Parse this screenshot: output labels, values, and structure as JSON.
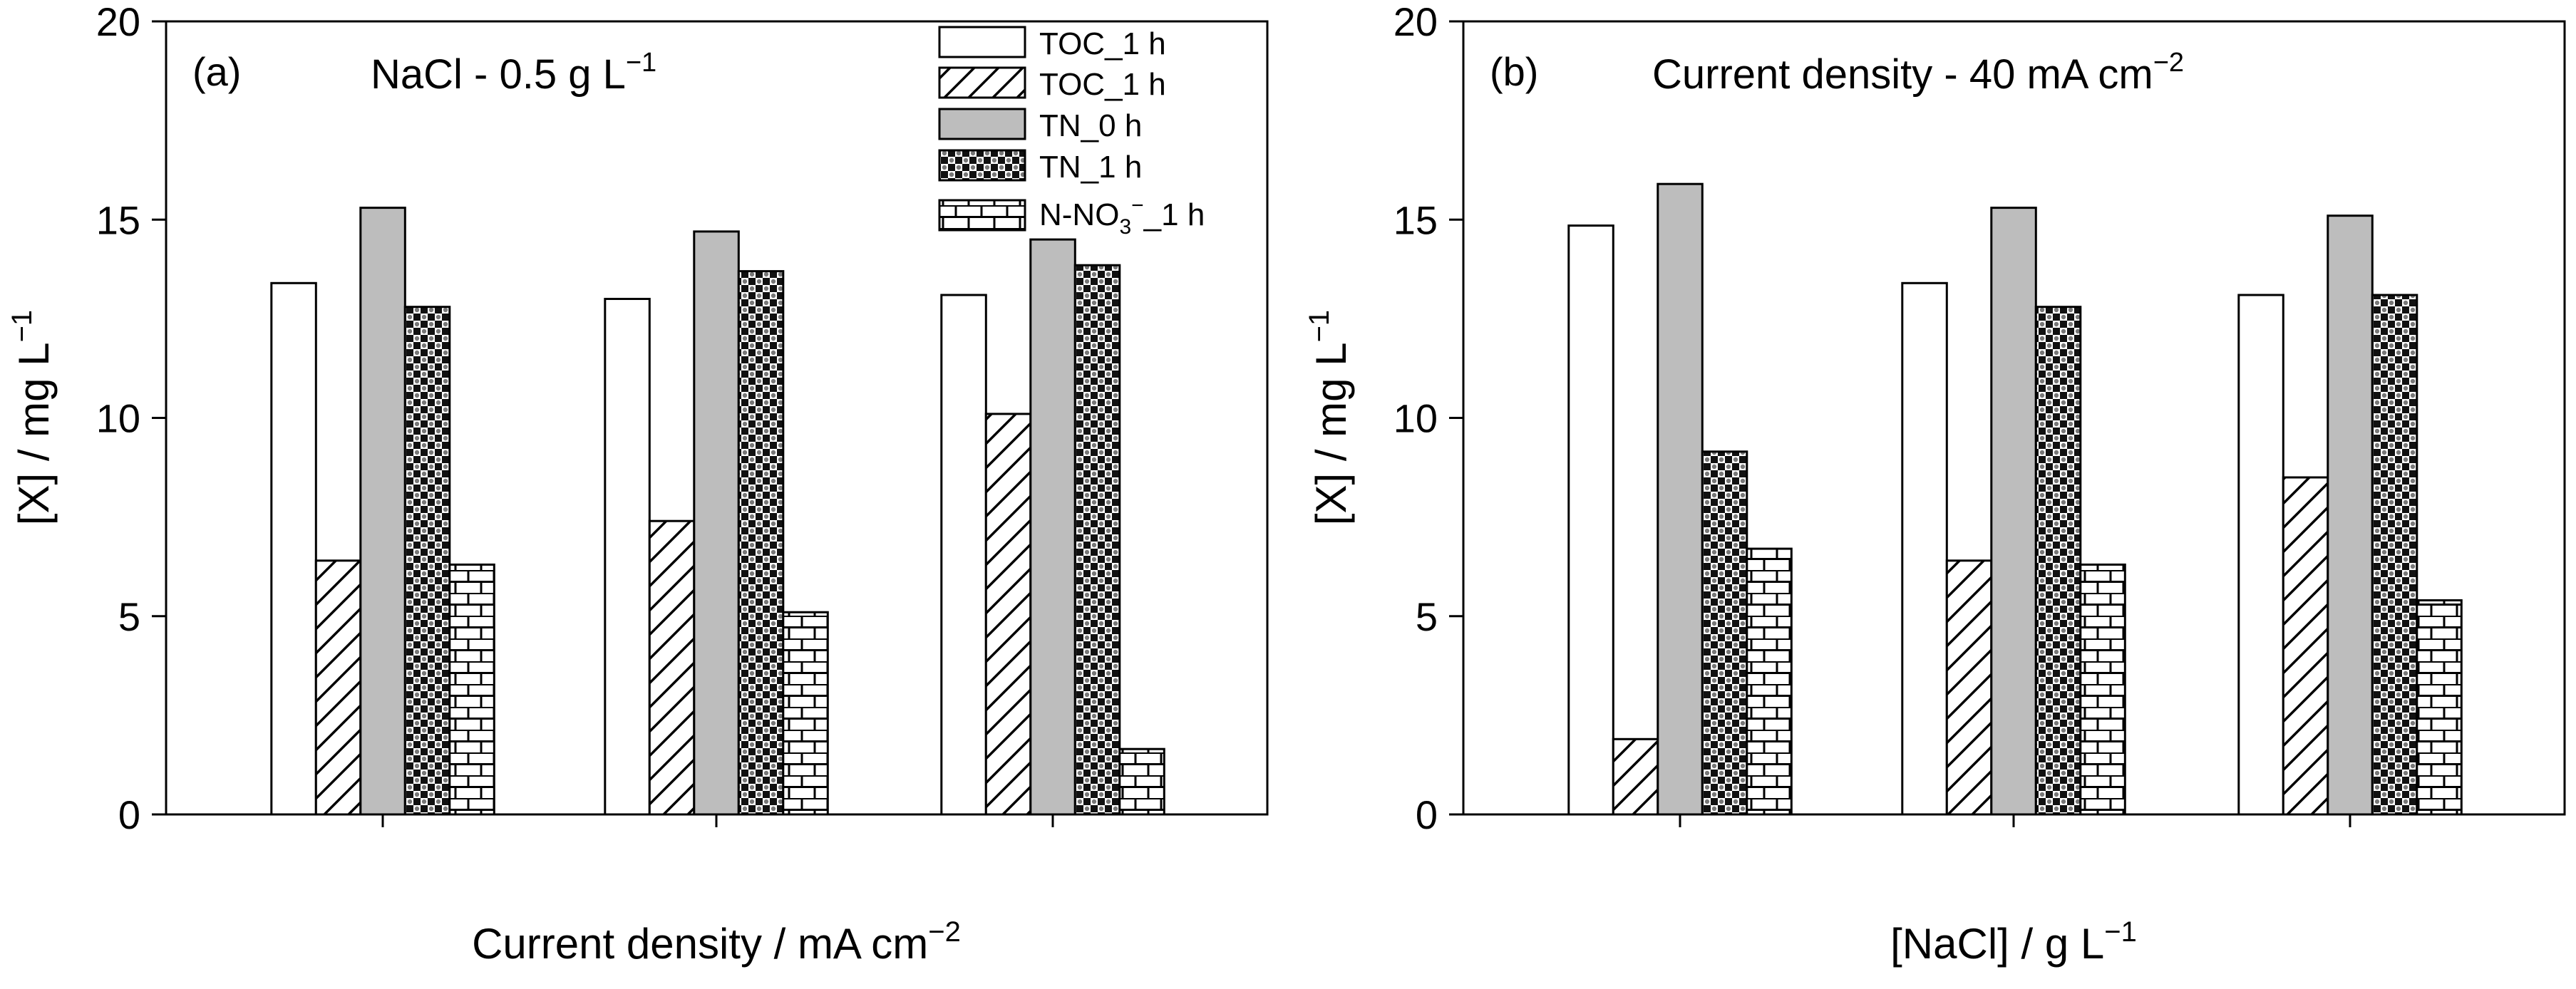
{
  "chart_data": [
    {
      "type": "bar",
      "panel_label": "(a)",
      "condition": {
        "text": "NaCl - 0.5 g L",
        "sup": "−1"
      },
      "xlabel": {
        "text": "Current density / mA cm",
        "sup": "−2"
      },
      "ylabel": {
        "text": "[X] / mg L",
        "sup": "−1"
      },
      "ylim": [
        0,
        20
      ],
      "yticks": [
        "0",
        "5",
        "10",
        "15",
        "20"
      ],
      "categories": [
        "",
        "",
        ""
      ],
      "grid": false,
      "legend_position": "top-right",
      "series": [
        {
          "name": "TOC_1 h",
          "values": [
            13.4,
            13.0,
            13.1
          ]
        },
        {
          "name": "TOC_1 h",
          "values": [
            6.4,
            7.4,
            10.1
          ]
        },
        {
          "name": "TN_0 h",
          "values": [
            15.3,
            14.7,
            14.5
          ]
        },
        {
          "name": "TN_1 h",
          "values": [
            12.8,
            13.7,
            13.85
          ]
        },
        {
          "name": "N-NO3⁻_1 h",
          "values": [
            6.3,
            5.1,
            1.65
          ]
        }
      ]
    },
    {
      "type": "bar",
      "panel_label": "(b)",
      "condition": {
        "text": "Current density - 40 mA cm",
        "sup": "−2"
      },
      "xlabel": {
        "text": "[NaCl] / g L",
        "sup": "−1"
      },
      "ylabel": {
        "text": "[X] / mg L",
        "sup": "−1"
      },
      "ylim": [
        0,
        20
      ],
      "yticks": [
        "0",
        "5",
        "10",
        "15",
        "20"
      ],
      "categories": [
        "",
        "",
        ""
      ],
      "grid": false,
      "series": [
        {
          "name": "TOC_1 h",
          "values": [
            14.85,
            13.4,
            13.1
          ]
        },
        {
          "name": "TOC_1 h",
          "values": [
            1.9,
            6.4,
            8.5
          ]
        },
        {
          "name": "TN_0 h",
          "values": [
            15.9,
            15.3,
            15.1
          ]
        },
        {
          "name": "TN_1 h",
          "values": [
            9.15,
            12.8,
            13.1
          ]
        },
        {
          "name": "N-NO3⁻_1 h",
          "values": [
            6.7,
            6.3,
            5.4
          ]
        }
      ]
    }
  ],
  "legend": {
    "items": [
      {
        "label": "TOC_1 h",
        "pattern": "empty"
      },
      {
        "label": "TOC_1 h",
        "pattern": "hatch"
      },
      {
        "label": "TN_0 h",
        "pattern": "gray"
      },
      {
        "label": "TN_1 h",
        "pattern": "checker"
      },
      {
        "label_main": "N-NO",
        "label_sub": "3",
        "label_sup": "−",
        "label_end": "_1 h",
        "pattern": "brick"
      }
    ]
  },
  "colors": {
    "gray_fill": "#bdbdbd",
    "ink": "#000000",
    "paper": "#ffffff"
  }
}
